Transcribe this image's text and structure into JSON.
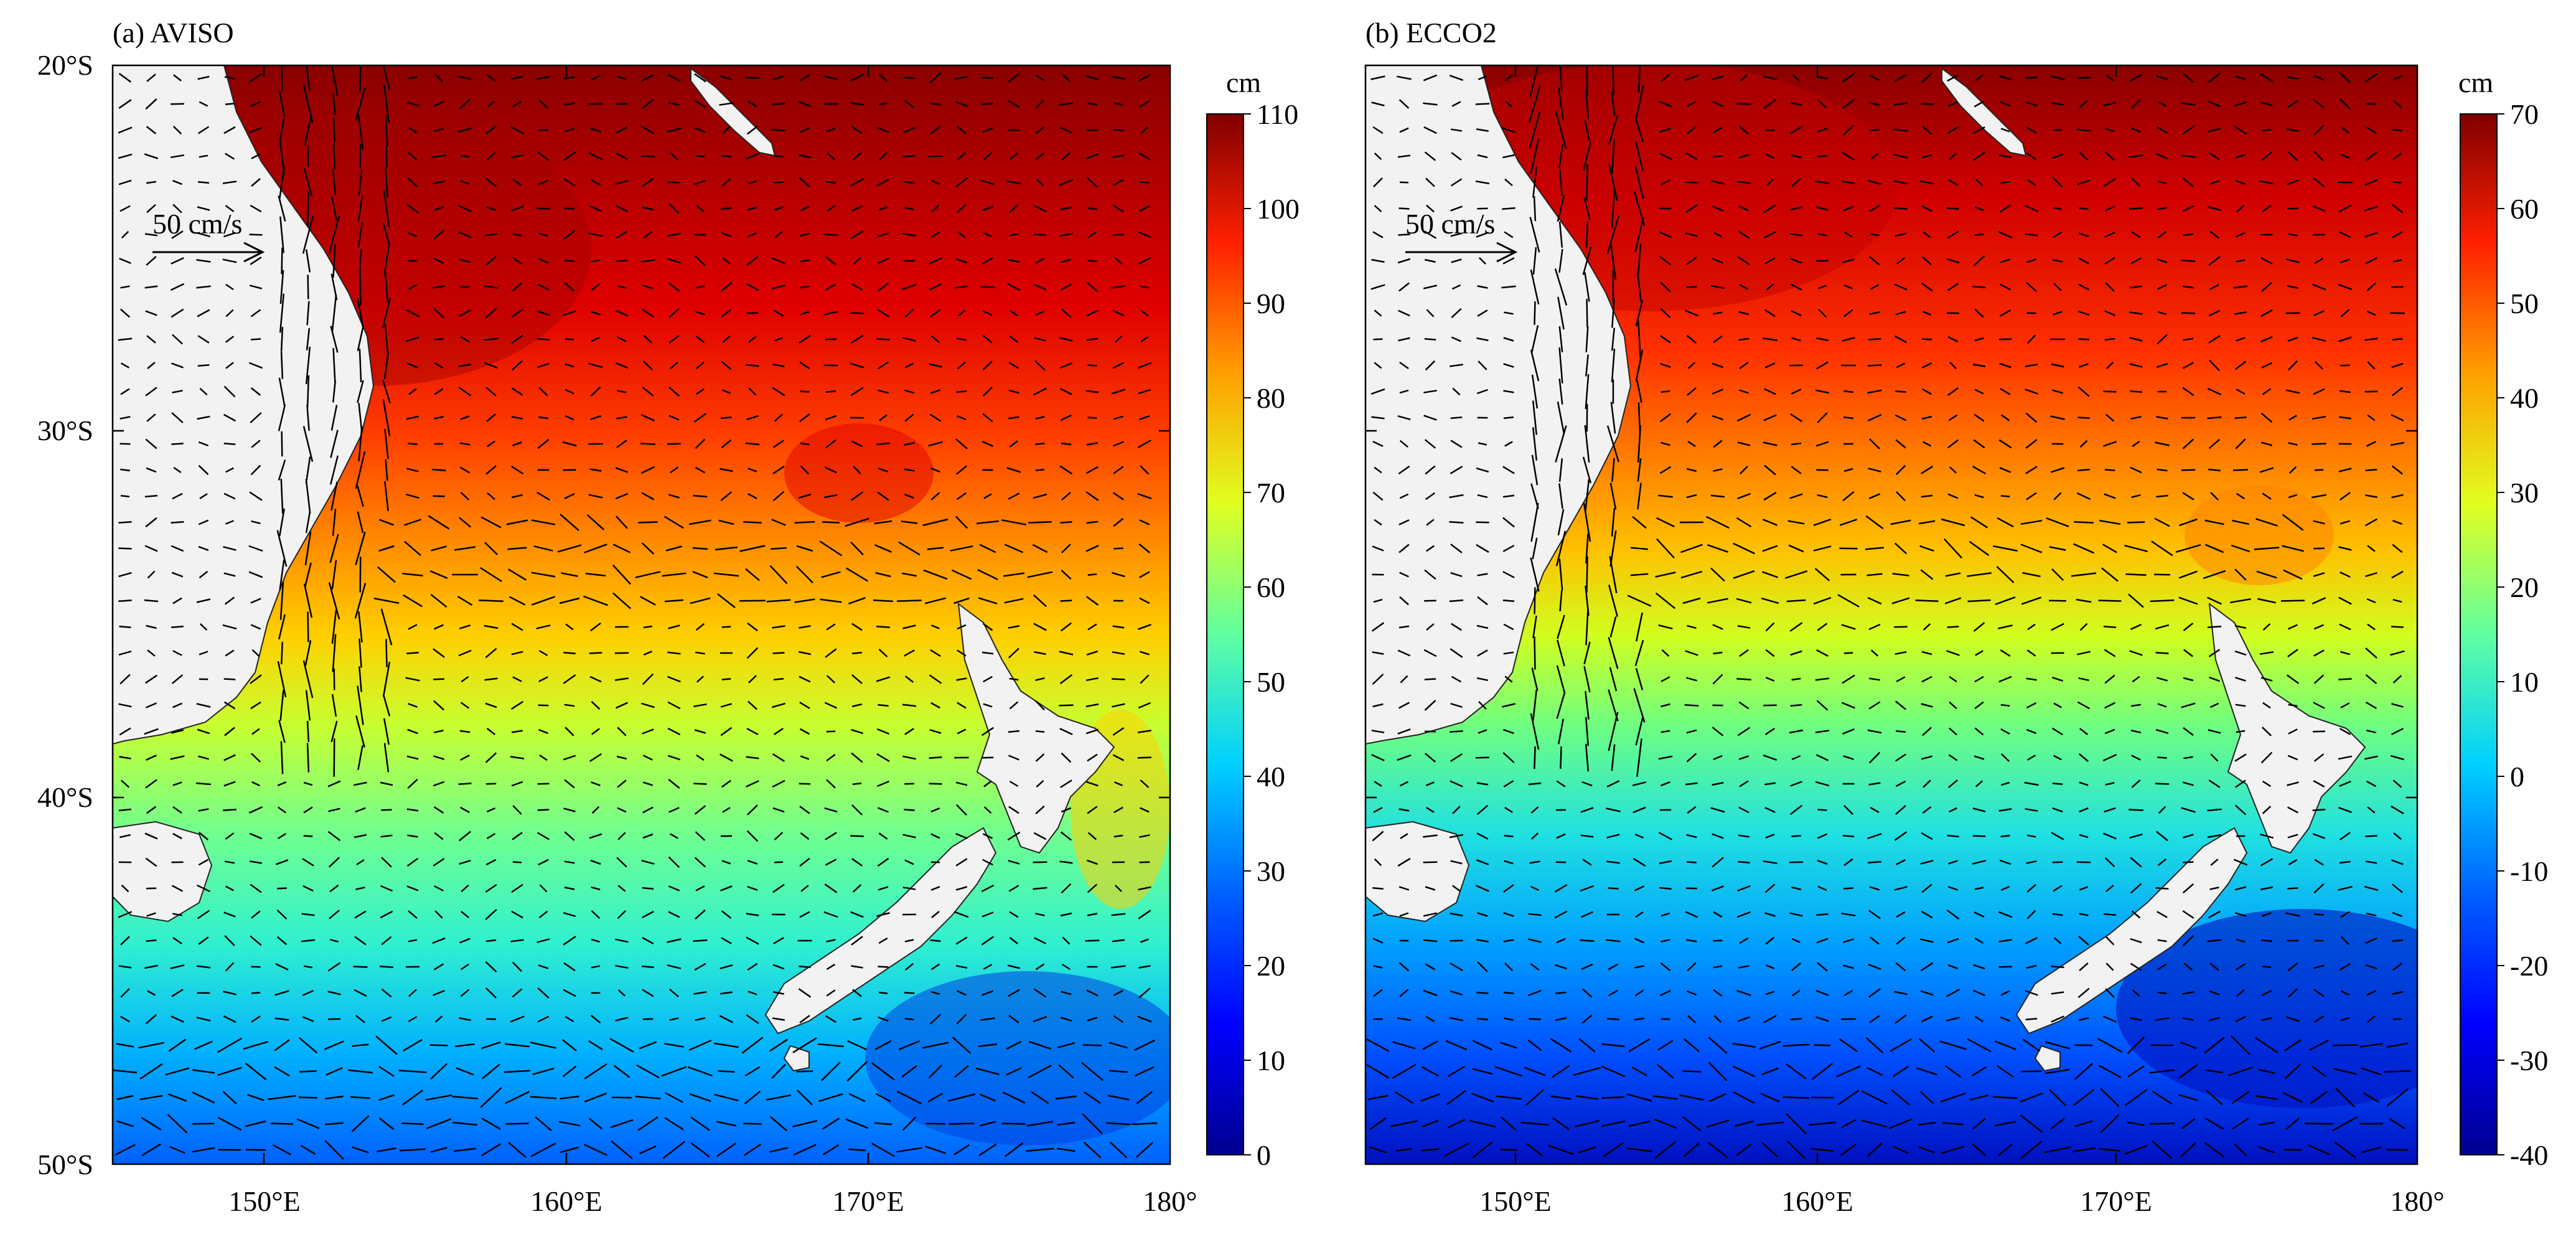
{
  "panels": [
    {
      "id": "a",
      "title": "(a) AVISO",
      "scale_label": "50 cm/s",
      "colorbar_unit": "cm",
      "colorbar_ticks": [
        "0",
        "10",
        "20",
        "30",
        "40",
        "50",
        "60",
        "70",
        "80",
        "90",
        "100",
        "110"
      ],
      "colorbar_range": [
        0,
        110
      ]
    },
    {
      "id": "b",
      "title": "(b) ECCO2",
      "scale_label": "50 cm/s",
      "colorbar_unit": "cm",
      "colorbar_ticks": [
        "-40",
        "-30",
        "-20",
        "-10",
        "0",
        "10",
        "20",
        "30",
        "40",
        "50",
        "60",
        "70"
      ],
      "colorbar_range": [
        -40,
        70
      ]
    }
  ],
  "axes": {
    "lat_labels": [
      "20°S",
      "30°S",
      "40°S",
      "50°S"
    ],
    "lon_labels": [
      "150°E",
      "160°E",
      "170°E",
      "180°"
    ],
    "lat_range": [
      -50,
      -20
    ],
    "lon_range": [
      145,
      180
    ]
  },
  "colormap": [
    "#00008f",
    "#0000ff",
    "#0080ff",
    "#00ffff",
    "#80ff80",
    "#ffff00",
    "#ff8000",
    "#ff0000",
    "#800000"
  ],
  "land_color": "#f2f2f2"
}
